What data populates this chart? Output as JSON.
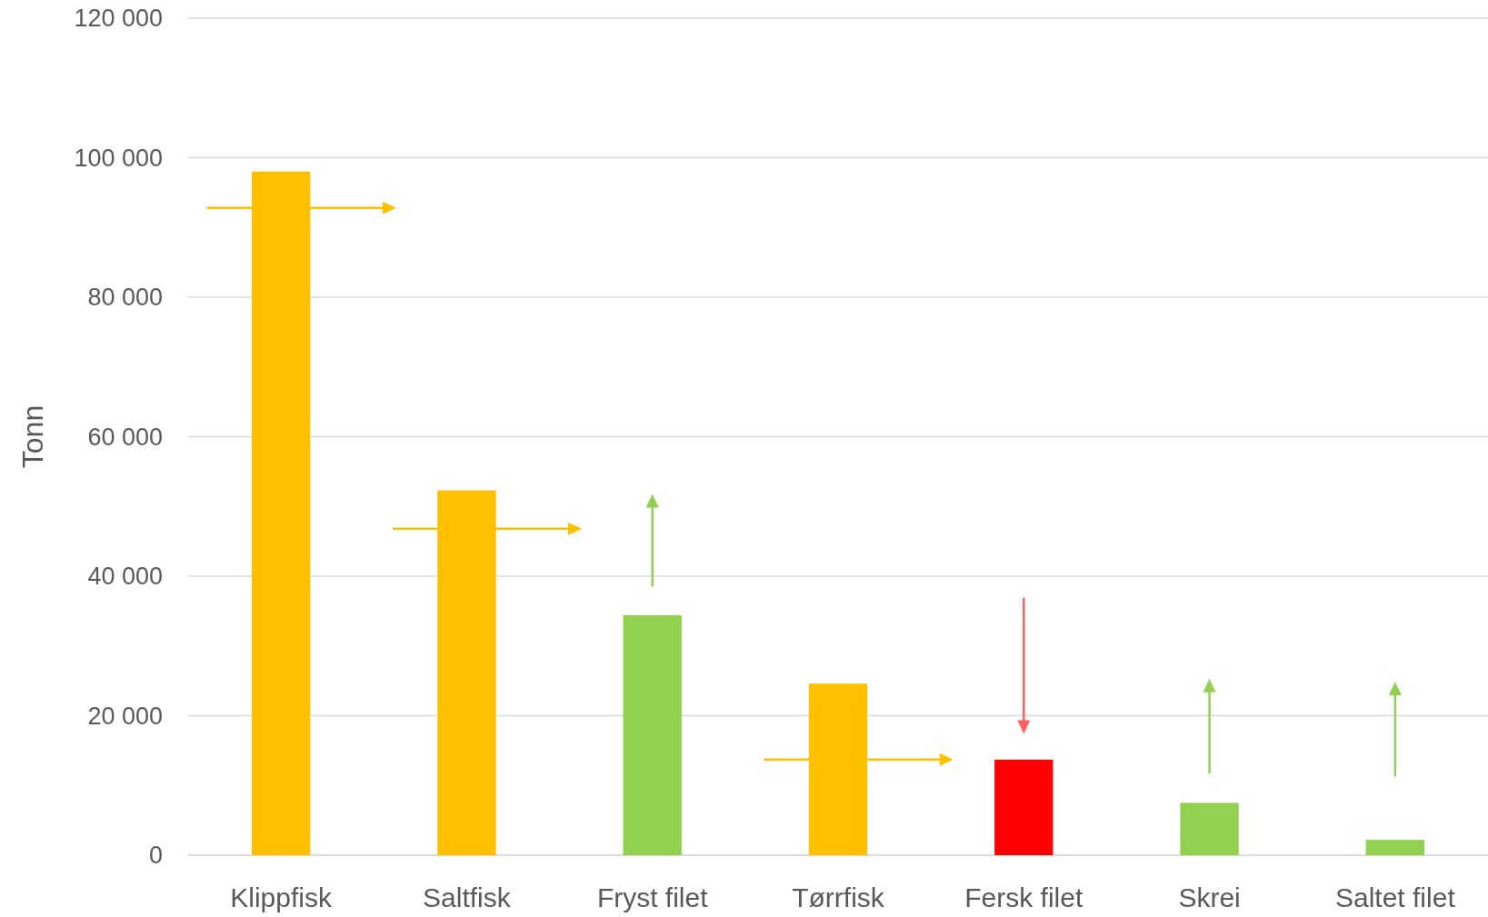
{
  "chart_data": {
    "type": "bar",
    "ylabel": "Tonn",
    "categories": [
      "Klippfisk",
      "Saltfisk",
      "Fryst filet",
      "Tørrfisk",
      "Fersk filet",
      "Skrei",
      "Saltet filet"
    ],
    "values": [
      98000,
      52300,
      34400,
      24600,
      13700,
      7500,
      2200
    ],
    "colors": [
      "#ffc000",
      "#ffc000",
      "#92d050",
      "#ffc000",
      "#ff0000",
      "#92d050",
      "#92d050"
    ],
    "ylim": [
      0,
      120000
    ],
    "yticks": [
      {
        "value": 0,
        "label": "0"
      },
      {
        "value": 20000,
        "label": "20 000"
      },
      {
        "value": 40000,
        "label": "40 000"
      },
      {
        "value": 60000,
        "label": "60 000"
      },
      {
        "value": 80000,
        "label": "80 000"
      },
      {
        "value": 100000,
        "label": "100 000"
      },
      {
        "value": 120000,
        "label": "120 000"
      }
    ],
    "grid": "y"
  }
}
